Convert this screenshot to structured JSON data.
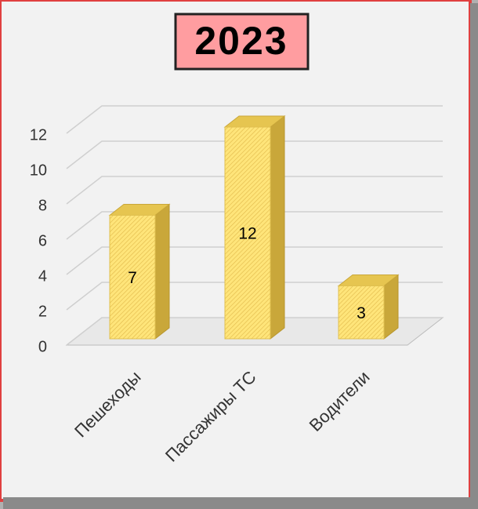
{
  "chart_data": {
    "type": "bar3d",
    "title": "2023",
    "categories": [
      "Пешеходы",
      "Пассажиры ТС",
      "Водители"
    ],
    "values": [
      7,
      12,
      3
    ],
    "color": "#ffe57a",
    "ylim": [
      0,
      12
    ],
    "yticks": [
      0,
      2,
      4,
      6,
      8,
      10,
      12
    ],
    "grid": true
  }
}
